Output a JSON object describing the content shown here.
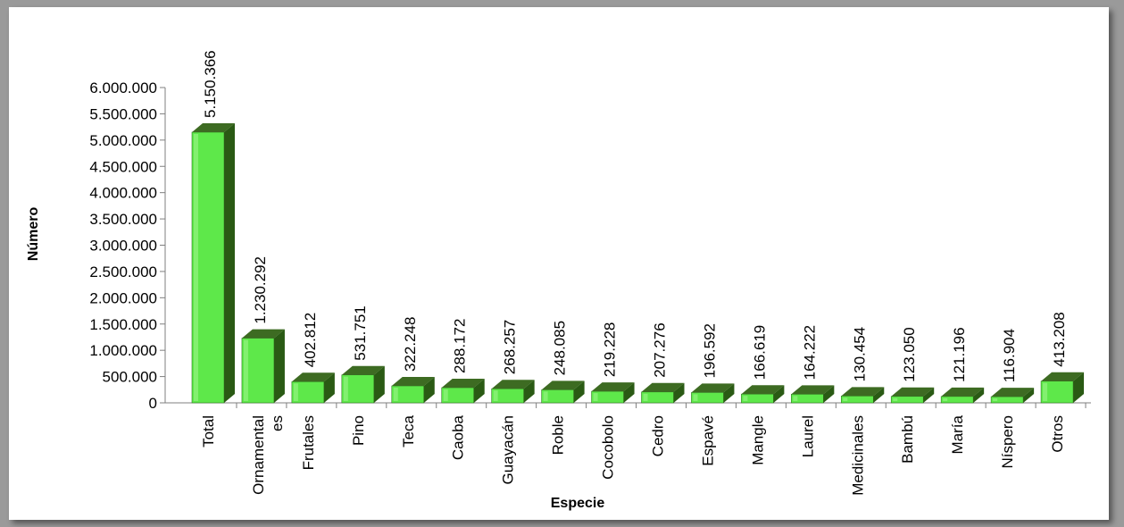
{
  "chart_data": {
    "type": "bar",
    "style": "3d-column",
    "categories": [
      "Total",
      "Ornamentales",
      "Frutales",
      "Pino",
      "Teca",
      "Caoba",
      "Guayacán",
      "Roble",
      "Cocobolo",
      "Cedro",
      "Espavé",
      "Mangle",
      "Laurel",
      "Medicinales",
      "Bambú",
      "María",
      "Níspero",
      "Otros"
    ],
    "category_display": [
      [
        "Total"
      ],
      [
        "Ornamental",
        "es"
      ],
      [
        "Frutales"
      ],
      [
        "Pino"
      ],
      [
        "Teca"
      ],
      [
        "Caoba"
      ],
      [
        "Guayacán"
      ],
      [
        "Roble"
      ],
      [
        "Cocobolo"
      ],
      [
        "Cedro"
      ],
      [
        "Espavé"
      ],
      [
        "Mangle"
      ],
      [
        "Laurel"
      ],
      [
        "Medicinales"
      ],
      [
        "Bambú"
      ],
      [
        "María"
      ],
      [
        "Níspero"
      ],
      [
        "Otros"
      ]
    ],
    "values": [
      5150366,
      1230292,
      402812,
      531751,
      322248,
      288172,
      268257,
      248085,
      219228,
      207276,
      196592,
      166619,
      164222,
      130454,
      123050,
      121196,
      116904,
      413208
    ],
    "value_labels": [
      "5.150.366",
      "1.230.292",
      "402.812",
      "531.751",
      "322.248",
      "288.172",
      "268.257",
      "248.085",
      "219.228",
      "207.276",
      "196.592",
      "166.619",
      "164.222",
      "130.454",
      "123.050",
      "121.196",
      "116.904",
      "413.208"
    ],
    "xlabel": "Especie",
    "ylabel": "Número",
    "ylim": [
      0,
      6000000
    ],
    "yticks": [
      0,
      500000,
      1000000,
      1500000,
      2000000,
      2500000,
      3000000,
      3500000,
      4000000,
      4500000,
      5000000,
      5500000,
      6000000
    ],
    "ytick_labels": [
      "0",
      "500.000",
      "1.000.000",
      "1.500.000",
      "2.000.000",
      "2.500.000",
      "3.000.000",
      "3.500.000",
      "4.000.000",
      "4.500.000",
      "5.000.000",
      "5.500.000",
      "6.000.000"
    ],
    "grid": false,
    "legend": "none",
    "colors": {
      "bar_front": "#5ee84a",
      "bar_top": "#3d6b22",
      "bar_side": "#2a5a14"
    }
  }
}
